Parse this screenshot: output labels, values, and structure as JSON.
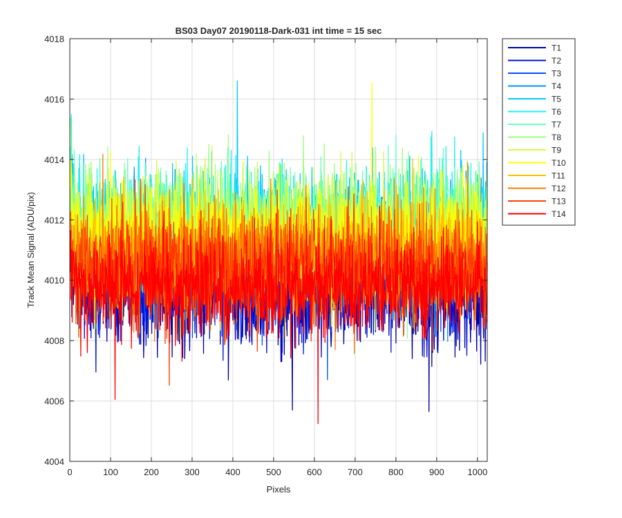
{
  "chart_data": {
    "type": "line",
    "title": "BS03 Day07 20190118-Dark-031 int time = 15 sec",
    "xlabel": "Pixels",
    "ylabel": "Track Mean Signal (ADU/pix)",
    "xlim": [
      0,
      1024
    ],
    "ylim": [
      4004,
      4018
    ],
    "xticks": [
      "0",
      "100",
      "200",
      "300",
      "400",
      "500",
      "600",
      "700",
      "800",
      "900",
      "1000"
    ],
    "yticks": [
      "4004",
      "4006",
      "4008",
      "4010",
      "4012",
      "4014",
      "4016",
      "4018"
    ],
    "grid": true,
    "legend_position": "outside-top-right",
    "x_points": 1024,
    "series": [
      {
        "name": "T1",
        "color": "#0000a8",
        "mean": 4009.6,
        "spread": 0.95,
        "peaks": [
          {
            "x": 880,
            "y": 4005.65
          },
          {
            "x": 545,
            "y": 4005.7
          }
        ]
      },
      {
        "name": "T2",
        "color": "#0012d8",
        "mean": 4009.9,
        "spread": 0.9
      },
      {
        "name": "T3",
        "color": "#0050ff",
        "mean": 4010.5,
        "spread": 0.9
      },
      {
        "name": "T4",
        "color": "#0090ff",
        "mean": 4011.0,
        "spread": 0.9
      },
      {
        "name": "T5",
        "color": "#00c8ff",
        "mean": 4011.7,
        "spread": 0.95,
        "peaks": [
          {
            "x": 410,
            "y": 4016.6
          }
        ]
      },
      {
        "name": "T6",
        "color": "#20f0f0",
        "mean": 4011.8,
        "spread": 0.95
      },
      {
        "name": "T7",
        "color": "#66ffc0",
        "mean": 4011.9,
        "spread": 0.95
      },
      {
        "name": "T8",
        "color": "#9aff80",
        "mean": 4011.8,
        "spread": 0.95
      },
      {
        "name": "T9",
        "color": "#d0ff40",
        "mean": 4011.6,
        "spread": 0.95
      },
      {
        "name": "T10",
        "color": "#ffff00",
        "mean": 4011.3,
        "spread": 0.95,
        "peaks": [
          {
            "x": 740,
            "y": 4016.55
          }
        ]
      },
      {
        "name": "T11",
        "color": "#ffc000",
        "mean": 4010.9,
        "spread": 0.9
      },
      {
        "name": "T12",
        "color": "#ff7a00",
        "mean": 4010.6,
        "spread": 0.9
      },
      {
        "name": "T13",
        "color": "#ff3c00",
        "mean": 4010.4,
        "spread": 0.9
      },
      {
        "name": "T14",
        "color": "#ff0000",
        "mean": 4009.8,
        "spread": 0.8,
        "peaks": [
          {
            "x": 608,
            "y": 4005.25
          },
          {
            "x": 110,
            "y": 4006.05
          }
        ]
      }
    ]
  }
}
